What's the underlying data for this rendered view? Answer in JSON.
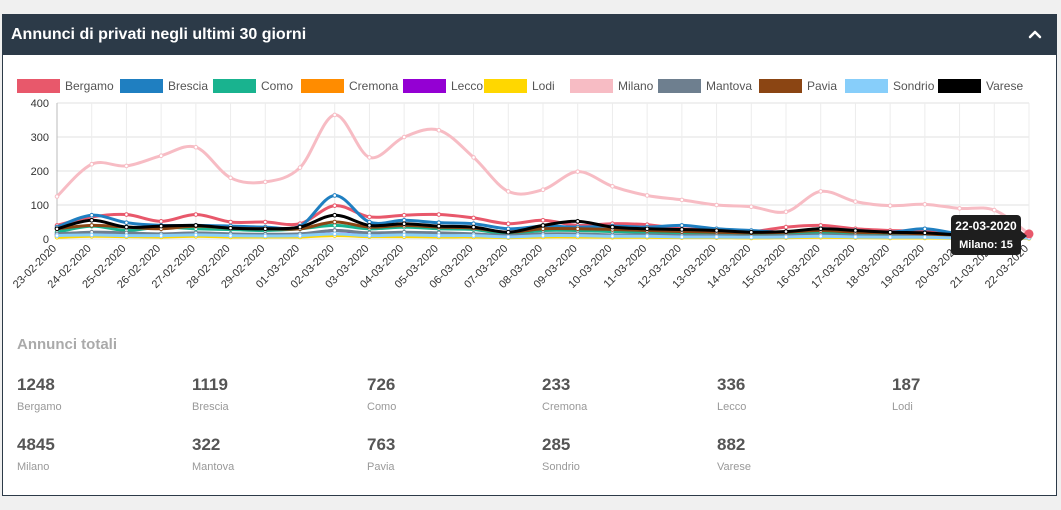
{
  "panel": {
    "title": "Annunci di privati negli ultimi 30 giorni"
  },
  "icons": {
    "collapse": "chevron-up-icon"
  },
  "chart_data": {
    "type": "line",
    "title": "",
    "xlabel": "",
    "ylabel": "",
    "ylim": [
      0,
      400
    ],
    "yticks": [
      0,
      100,
      200,
      300,
      400
    ],
    "grid": true,
    "legend_position": "top",
    "x": [
      "23-02-2020",
      "24-02-2020",
      "25-02-2020",
      "26-02-2020",
      "27-02-2020",
      "28-02-2020",
      "29-02-2020",
      "01-03-2020",
      "02-03-2020",
      "03-03-2020",
      "04-03-2020",
      "05-03-2020",
      "06-03-2020",
      "07-03-2020",
      "08-03-2020",
      "09-03-2020",
      "10-03-2020",
      "11-03-2020",
      "12-03-2020",
      "13-03-2020",
      "14-03-2020",
      "15-03-2020",
      "16-03-2020",
      "17-03-2020",
      "18-03-2020",
      "19-03-2020",
      "20-03-2020",
      "21-03-2020",
      "22-03-2020"
    ],
    "series": [
      {
        "name": "Bergamo",
        "color": "#e8586b",
        "values": [
          40,
          65,
          72,
          52,
          72,
          50,
          50,
          45,
          98,
          65,
          70,
          72,
          62,
          45,
          55,
          40,
          45,
          42,
          30,
          28,
          22,
          35,
          40,
          30,
          25,
          22,
          12,
          10,
          15
        ]
      },
      {
        "name": "Brescia",
        "color": "#1f7fc1",
        "values": [
          35,
          70,
          48,
          40,
          40,
          38,
          35,
          38,
          128,
          50,
          55,
          48,
          45,
          30,
          38,
          35,
          38,
          35,
          40,
          30,
          25,
          20,
          30,
          25,
          20,
          30,
          15,
          10,
          12
        ]
      },
      {
        "name": "Como",
        "color": "#19b38f",
        "values": [
          20,
          38,
          25,
          35,
          30,
          28,
          25,
          30,
          40,
          30,
          35,
          30,
          28,
          15,
          25,
          25,
          22,
          20,
          18,
          18,
          12,
          15,
          20,
          15,
          12,
          10,
          8,
          6,
          8
        ]
      },
      {
        "name": "Cremona",
        "color": "#ff8c00",
        "values": [
          8,
          10,
          12,
          10,
          12,
          10,
          8,
          10,
          12,
          8,
          10,
          8,
          8,
          5,
          8,
          8,
          6,
          6,
          5,
          5,
          4,
          5,
          6,
          5,
          4,
          4,
          3,
          2,
          3
        ]
      },
      {
        "name": "Lecco",
        "color": "#9400d3",
        "values": [
          12,
          15,
          14,
          12,
          15,
          12,
          12,
          12,
          25,
          15,
          14,
          12,
          12,
          8,
          12,
          12,
          10,
          10,
          8,
          8,
          6,
          8,
          10,
          8,
          6,
          6,
          4,
          3,
          4
        ]
      },
      {
        "name": "Lodi",
        "color": "#ffd700",
        "values": [
          5,
          8,
          7,
          6,
          8,
          6,
          6,
          6,
          10,
          7,
          7,
          6,
          6,
          4,
          6,
          6,
          5,
          5,
          4,
          4,
          3,
          4,
          5,
          4,
          3,
          3,
          2,
          2,
          2
        ]
      },
      {
        "name": "Milano",
        "color": "#f7bcc4",
        "values": [
          125,
          220,
          215,
          245,
          270,
          180,
          168,
          210,
          365,
          240,
          300,
          320,
          240,
          140,
          145,
          198,
          155,
          128,
          115,
          100,
          95,
          80,
          140,
          110,
          98,
          102,
          90,
          85,
          15
        ]
      },
      {
        "name": "Mantova",
        "color": "#6e7f8f",
        "values": [
          15,
          20,
          18,
          15,
          18,
          15,
          14,
          15,
          25,
          18,
          20,
          18,
          15,
          10,
          15,
          15,
          12,
          12,
          10,
          10,
          8,
          10,
          12,
          10,
          8,
          8,
          5,
          4,
          5
        ]
      },
      {
        "name": "Pavia",
        "color": "#8b4513",
        "values": [
          30,
          40,
          35,
          30,
          38,
          32,
          30,
          30,
          50,
          35,
          40,
          35,
          32,
          20,
          30,
          30,
          28,
          25,
          22,
          20,
          18,
          20,
          25,
          20,
          18,
          15,
          10,
          8,
          10
        ]
      },
      {
        "name": "Sondrio",
        "color": "#87cefa",
        "values": [
          10,
          12,
          10,
          10,
          12,
          10,
          9,
          10,
          15,
          10,
          12,
          10,
          10,
          6,
          10,
          10,
          8,
          8,
          6,
          6,
          5,
          6,
          8,
          6,
          5,
          5,
          3,
          3,
          3
        ]
      },
      {
        "name": "Varese",
        "color": "#000000",
        "values": [
          30,
          55,
          35,
          38,
          40,
          32,
          30,
          35,
          70,
          40,
          45,
          38,
          35,
          20,
          40,
          52,
          35,
          30,
          28,
          25,
          20,
          22,
          30,
          25,
          20,
          18,
          12,
          10,
          12
        ]
      }
    ],
    "tooltip": {
      "date": "22-03-2020",
      "text": "Milano: 15"
    }
  },
  "totals": {
    "title": "Annunci totali",
    "items": [
      {
        "name": "Bergamo",
        "value": "1248"
      },
      {
        "name": "Brescia",
        "value": "1119"
      },
      {
        "name": "Como",
        "value": "726"
      },
      {
        "name": "Cremona",
        "value": "233"
      },
      {
        "name": "Lecco",
        "value": "336"
      },
      {
        "name": "Lodi",
        "value": "187"
      },
      {
        "name": "Milano",
        "value": "4845"
      },
      {
        "name": "Mantova",
        "value": "322"
      },
      {
        "name": "Pavia",
        "value": "763"
      },
      {
        "name": "Sondrio",
        "value": "285"
      },
      {
        "name": "Varese",
        "value": "882"
      }
    ]
  }
}
